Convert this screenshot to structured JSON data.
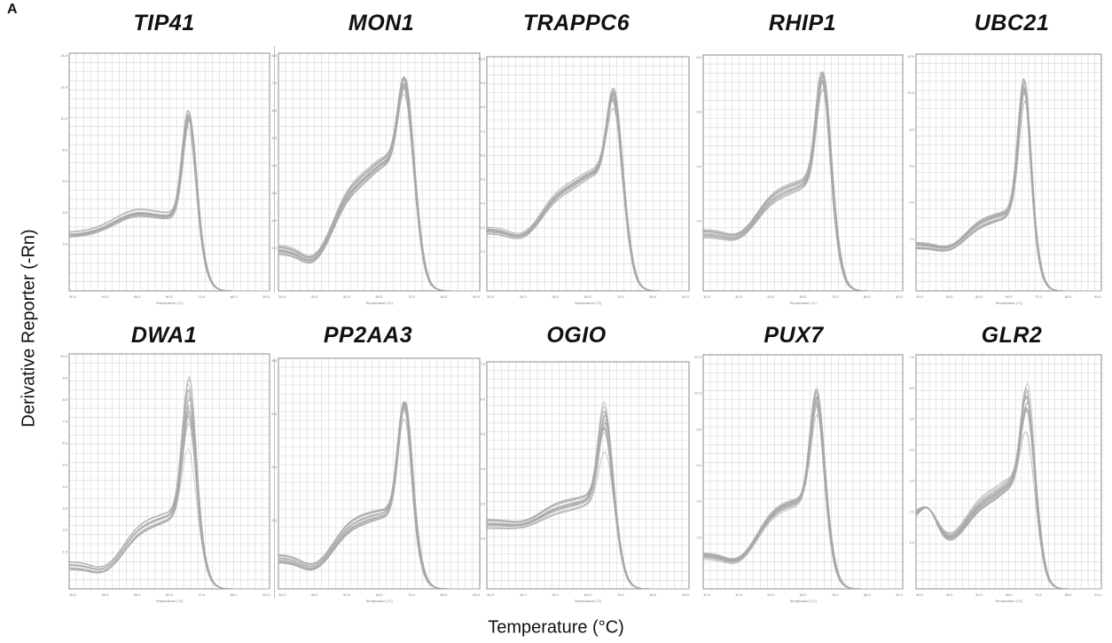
{
  "panel_label": "A",
  "ylabel": "Derivative Reporter (-Rn)",
  "xlabel": "Temperature (°C)",
  "colors": {
    "curve": "#a9a9a9",
    "grid": "#d6d6d6",
    "frame": "#8c8c8c"
  },
  "chart_data": [
    {
      "type": "line",
      "title": "TIP41",
      "xlabel": "Temperature (°C)",
      "xlim": [
        60,
        95
      ],
      "ylim": [
        0,
        14.0
      ],
      "grid": true,
      "peak_tm": 81.0,
      "peak_height": [
        10.0,
        11.0
      ],
      "base_low": 3.3,
      "shoulder": 4.6,
      "prepeak": 4.3,
      "low_start": true,
      "y_tick_labels": [
        "14.0",
        "12.0",
        "10.0",
        "8.0",
        "6.0",
        "4.0",
        "2.0"
      ]
    },
    {
      "type": "line",
      "title": "MON1",
      "xlabel": "Temperature (°C)",
      "xlim": [
        60,
        95
      ],
      "ylim": [
        0,
        8.0
      ],
      "grid": true,
      "peak_tm": 82.0,
      "peak_height": [
        6.9,
        7.5
      ],
      "base_low": 1.4,
      "dip": 0.6,
      "shoulder": 3.8,
      "prepeak": 4.5,
      "y_tick_labels": [
        "8.0",
        "7.0",
        "6.0",
        "5.0",
        "4.0",
        "3.0",
        "2.0",
        "1.0"
      ]
    },
    {
      "type": "line",
      "title": "TRAPPC6",
      "xlabel": "Temperature (°C)",
      "xlim": [
        60,
        95
      ],
      "ylim": [
        0,
        10.0
      ],
      "grid": true,
      "peak_tm": 82.0,
      "peak_height": [
        8.1,
        9.0
      ],
      "base_low": 2.6,
      "dip": 2.0,
      "shoulder": 4.5,
      "prepeak": 5.2,
      "y_tick_labels": [
        "10.0",
        "9.0",
        "8.0",
        "7.0",
        "6.0",
        "5.0",
        "4.0",
        "3.0",
        "2.0"
      ]
    },
    {
      "type": "line",
      "title": "RHIP1",
      "xlabel": "Temperature (°C)",
      "xlim": [
        60,
        95
      ],
      "ylim": [
        0,
        9.0
      ],
      "grid": true,
      "peak_tm": 81.0,
      "peak_height": [
        8.0,
        8.7
      ],
      "base_low": 2.2,
      "dip": 1.8,
      "shoulder": 3.9,
      "prepeak": 4.2,
      "y_tick_labels": [
        "8.0",
        "6.0",
        "4.0",
        "2.0"
      ]
    },
    {
      "type": "line",
      "title": "UBC21",
      "xlabel": "Temperature (°C)",
      "xlim": [
        60,
        95
      ],
      "ylim": [
        0,
        12.0
      ],
      "grid": true,
      "peak_tm": 80.5,
      "peak_height": [
        10.0,
        11.2
      ],
      "base_low": 2.3,
      "dip": 1.9,
      "shoulder": 3.7,
      "prepeak": 4.0,
      "y_tick_labels": [
        "12.0",
        "10.0",
        "8.0",
        "6.0",
        "4.0",
        "2.0"
      ]
    },
    {
      "type": "line",
      "title": "DWA1",
      "xlabel": "Temperature (°C)",
      "xlim": [
        60,
        95
      ],
      "ylim": [
        0,
        10.0
      ],
      "grid": true,
      "peak_tm": 81.0,
      "peak_height": [
        6.2,
        9.4
      ],
      "base_low": 1.0,
      "dip": 0.5,
      "shoulder": 2.9,
      "prepeak": 3.2,
      "y_tick_labels": [
        "10.0",
        "9.0",
        "8.0",
        "7.0",
        "6.0",
        "5.0",
        "4.0",
        "3.0",
        "2.0",
        "1.0"
      ]
    },
    {
      "type": "line",
      "title": "PP2AA3",
      "xlabel": "Temperature (°C)",
      "xlim": [
        60,
        95
      ],
      "ylim": [
        0,
        9.0
      ],
      "grid": true,
      "peak_tm": 82.0,
      "peak_height": [
        6.9,
        7.6
      ],
      "base_low": 1.2,
      "dip": 0.5,
      "shoulder": 2.8,
      "prepeak": 3.0,
      "y_tick_labels": [
        "8.0",
        "6.0",
        "4.0",
        "2.0"
      ]
    },
    {
      "type": "line",
      "title": "OGIO",
      "xlabel": "Temperature (°C)",
      "xlim": [
        60,
        95
      ],
      "ylim": [
        0,
        7.0
      ],
      "grid": true,
      "peak_tm": 80.5,
      "peak_height": [
        4.4,
        6.0
      ],
      "base_low": 2.0,
      "dip": 1.9,
      "shoulder": 2.6,
      "prepeak": 2.8,
      "y_tick_labels": [
        "7.0",
        "6.0",
        "5.0",
        "4.0",
        "3.0",
        "2.0"
      ]
    },
    {
      "type": "line",
      "title": "PUX7",
      "xlabel": "Temperature (°C)",
      "xlim": [
        60,
        95
      ],
      "ylim": [
        0,
        12.0
      ],
      "grid": true,
      "peak_tm": 80.0,
      "peak_height": [
        9.3,
        10.7
      ],
      "base_low": 1.7,
      "dip": 1.0,
      "shoulder": 4.4,
      "prepeak": 4.6,
      "y_tick_labels": [
        "12.0",
        "10.0",
        "8.0",
        "6.0",
        "4.0",
        "2.0"
      ]
    },
    {
      "type": "line",
      "title": "GLR2",
      "xlabel": "Temperature (°C)",
      "xlim": [
        60,
        95
      ],
      "ylim": [
        0,
        7.0
      ],
      "grid": true,
      "peak_tm": 81.0,
      "peak_height": [
        4.9,
        6.4
      ],
      "base_low": 2.1,
      "hump": 2.6,
      "dip": 1.2,
      "shoulder": 2.8,
      "prepeak": 3.3,
      "y_tick_labels": [
        "7.0",
        "6.0",
        "5.0",
        "4.0",
        "3.0",
        "2.0",
        "1.0"
      ]
    }
  ]
}
